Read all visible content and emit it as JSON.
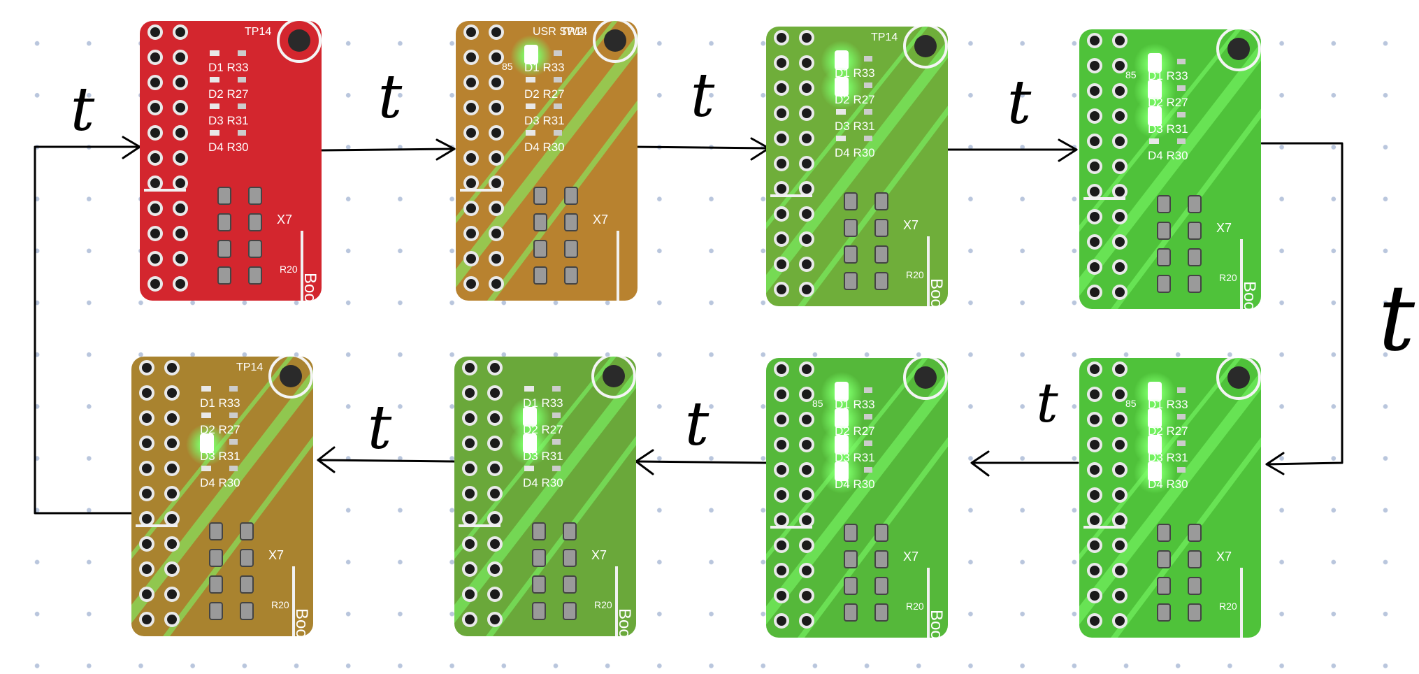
{
  "transition_label": "t",
  "boards": [
    {
      "label": "D1 R33",
      "silk": [
        "D1 R33",
        "D2 R27",
        "D3 R31",
        "D4 R30",
        "TP14",
        "X7",
        "R20",
        "Booster"
      ],
      "lit": [],
      "tint": "#d3262e"
    },
    {
      "label": "D1 R33",
      "silk": [
        "D1 R33",
        "D2 R27",
        "D3 R31",
        "D4 R30",
        "TP14",
        "X7",
        "USR SW2",
        "85"
      ],
      "lit": [
        "D1"
      ],
      "tint": "#b8822f"
    },
    {
      "label": "D1 R33",
      "silk": [
        "D1 R33",
        "D2 R27",
        "D3 R31",
        "D4 R30",
        "TP14",
        "X7",
        "R20",
        "Boo"
      ],
      "lit": [
        "D1",
        "D2"
      ],
      "tint": "#6fae3a"
    },
    {
      "label": "D1 R33",
      "silk": [
        "D1 R33",
        "D2 R27",
        "D3 R31",
        "D4 R30",
        "X7",
        "R20",
        "Boost",
        "85"
      ],
      "lit": [
        "D1",
        "D2",
        "D3"
      ],
      "tint": "#4fc23a"
    },
    {
      "label": "D1 R33",
      "silk": [
        "D1 R33",
        "D2 R27",
        "D3 R31",
        "D4 R30",
        "X7",
        "R20",
        "85"
      ],
      "lit": [
        "D1",
        "D2",
        "D3",
        "D4"
      ],
      "tint": "#4fc23a"
    },
    {
      "label": "D1 R33",
      "silk": [
        "D1 R33",
        "D2 R27",
        "D3 R31",
        "D4 R30",
        "X7",
        "R20",
        "Boos",
        "85"
      ],
      "lit": [
        "D1",
        "D2",
        "D3",
        "D4"
      ],
      "tint": "#55b83a"
    },
    {
      "label": "D1 R33",
      "silk": [
        "D1 R33",
        "D2 R27",
        "D3 R31",
        "D4 R30",
        "X7",
        "R20",
        "Booster"
      ],
      "lit": [
        "D2",
        "D3"
      ],
      "tint": "#6aa83a"
    },
    {
      "label": "D1 R33",
      "silk": [
        "D1 R33",
        "D2 R27",
        "D3 R31",
        "D4 R30",
        "TP14",
        "X7",
        "R20",
        "Booste"
      ],
      "lit": [
        "D3"
      ],
      "tint": "#a9832f"
    }
  ],
  "colors": {
    "line": "#000000",
    "red_board": "#d3262e",
    "green_glow": "#7dff6a",
    "dots": "#b9c6dd"
  }
}
